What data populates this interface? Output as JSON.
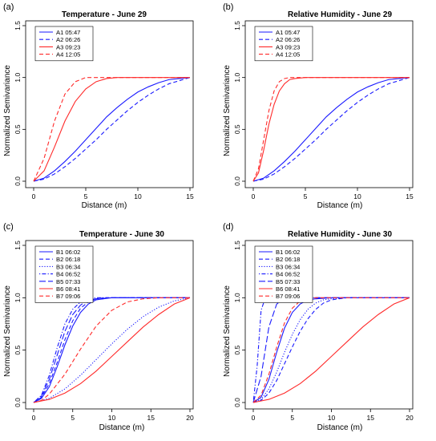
{
  "colors": {
    "blue": "#1a1aff",
    "red": "#ff2a2a"
  },
  "chart_data": [
    {
      "panel_label": "(a)",
      "type": "line",
      "title": "Temperature - June 29",
      "xlabel": "Distance (m)",
      "ylabel": "Normalized Semivariance",
      "xlim": [
        0,
        15
      ],
      "ylim": [
        0,
        1.5
      ],
      "xticks": [
        "0",
        "5",
        "10",
        "15"
      ],
      "yticks": [
        "0.0",
        "0.5",
        "1.0",
        "1.5"
      ],
      "legend_position": "top-left",
      "series": [
        {
          "name": "A1 05:47",
          "color": "blue",
          "style": "solid",
          "x": [
            0,
            1,
            2,
            3,
            4,
            5,
            6,
            7,
            8,
            9,
            10,
            11,
            12,
            13,
            14,
            15
          ],
          "y": [
            0,
            0.03,
            0.1,
            0.19,
            0.29,
            0.4,
            0.51,
            0.62,
            0.71,
            0.79,
            0.86,
            0.91,
            0.95,
            0.98,
            0.99,
            1.0
          ]
        },
        {
          "name": "A2 06:26",
          "color": "blue",
          "style": "dashed",
          "x": [
            0,
            1,
            2,
            3,
            4,
            5,
            6,
            7,
            8,
            9,
            10,
            11,
            12,
            13,
            14,
            15
          ],
          "y": [
            0,
            0.02,
            0.07,
            0.14,
            0.22,
            0.31,
            0.4,
            0.5,
            0.59,
            0.68,
            0.76,
            0.83,
            0.89,
            0.94,
            0.97,
            1.0
          ]
        },
        {
          "name": "A3 09:23",
          "color": "red",
          "style": "solid",
          "x": [
            0,
            1,
            2,
            3,
            4,
            5,
            6,
            7,
            8,
            9,
            10,
            11,
            12,
            13,
            14,
            15
          ],
          "y": [
            0,
            0.1,
            0.33,
            0.58,
            0.77,
            0.89,
            0.96,
            0.99,
            1.0,
            1.0,
            1.0,
            1.0,
            1.0,
            1.0,
            1.0,
            1.0
          ]
        },
        {
          "name": "A4 12:05",
          "color": "red",
          "style": "dashed",
          "x": [
            0,
            1,
            2,
            3,
            4,
            5,
            6,
            7,
            8,
            9,
            10,
            11,
            12,
            13,
            14,
            15
          ],
          "y": [
            0,
            0.22,
            0.58,
            0.84,
            0.96,
            1.0,
            1.0,
            1.0,
            1.0,
            1.0,
            1.0,
            1.0,
            1.0,
            1.0,
            1.0,
            1.0
          ]
        }
      ]
    },
    {
      "panel_label": "(b)",
      "type": "line",
      "title": "Relative Humidity - June 29",
      "xlabel": "Distance (m)",
      "ylabel": "Normalized Semivariance",
      "xlim": [
        0,
        15
      ],
      "ylim": [
        0,
        1.5
      ],
      "xticks": [
        "0",
        "5",
        "10",
        "15"
      ],
      "yticks": [
        "0.0",
        "0.5",
        "1.0",
        "1.5"
      ],
      "legend_position": "top-left",
      "series": [
        {
          "name": "A1 05:47",
          "color": "blue",
          "style": "solid",
          "x": [
            0,
            1,
            2,
            3,
            4,
            5,
            6,
            7,
            8,
            9,
            10,
            11,
            12,
            13,
            14,
            15
          ],
          "y": [
            0,
            0.03,
            0.1,
            0.19,
            0.29,
            0.4,
            0.51,
            0.62,
            0.71,
            0.79,
            0.86,
            0.91,
            0.95,
            0.98,
            0.99,
            1.0
          ]
        },
        {
          "name": "A2 06:26",
          "color": "blue",
          "style": "dashed",
          "x": [
            0,
            1,
            2,
            3,
            4,
            5,
            6,
            7,
            8,
            9,
            10,
            11,
            12,
            13,
            14,
            15
          ],
          "y": [
            0,
            0.02,
            0.07,
            0.14,
            0.22,
            0.31,
            0.4,
            0.5,
            0.59,
            0.68,
            0.76,
            0.83,
            0.89,
            0.94,
            0.97,
            1.0
          ]
        },
        {
          "name": "A3 09:23",
          "color": "red",
          "style": "solid",
          "x": [
            0,
            0.5,
            1,
            1.5,
            2,
            2.5,
            3,
            3.5,
            4,
            5,
            6,
            8,
            10,
            12,
            15
          ],
          "y": [
            0,
            0.08,
            0.3,
            0.55,
            0.74,
            0.87,
            0.94,
            0.98,
            0.99,
            1.0,
            1.0,
            1.0,
            1.0,
            1.0,
            1.0
          ]
        },
        {
          "name": "A4 12:05",
          "color": "red",
          "style": "dashed",
          "x": [
            0,
            0.5,
            1,
            1.5,
            2,
            2.5,
            3,
            3.5,
            4,
            5,
            6,
            8,
            10,
            12,
            15
          ],
          "y": [
            0,
            0.12,
            0.4,
            0.68,
            0.87,
            0.96,
            0.99,
            1.0,
            1.0,
            1.0,
            1.0,
            1.0,
            1.0,
            1.0,
            1.0
          ]
        }
      ]
    },
    {
      "panel_label": "(c)",
      "type": "line",
      "title": "Temperature - June 30",
      "xlabel": "Distance (m)",
      "ylabel": "Normalized Semivariance",
      "xlim": [
        0,
        20
      ],
      "ylim": [
        0,
        1.5
      ],
      "xticks": [
        "0",
        "5",
        "10",
        "15",
        "20"
      ],
      "yticks": [
        "0.0",
        "0.5",
        "1.0",
        "1.5"
      ],
      "legend_position": "top-left",
      "series": [
        {
          "name": "B1 06:02",
          "color": "blue",
          "style": "solid",
          "x": [
            0,
            1,
            2,
            3,
            4,
            5,
            6,
            7,
            8,
            9,
            10,
            12,
            14,
            17,
            20
          ],
          "y": [
            0,
            0.04,
            0.15,
            0.34,
            0.55,
            0.73,
            0.86,
            0.94,
            0.98,
            0.99,
            1.0,
            1.0,
            1.0,
            1.0,
            1.0
          ]
        },
        {
          "name": "B2 06:18",
          "color": "blue",
          "style": "dashed",
          "x": [
            0,
            1,
            2,
            3,
            4,
            5,
            6,
            7,
            8,
            9,
            10,
            12,
            14,
            17,
            20
          ],
          "y": [
            0,
            0.05,
            0.18,
            0.38,
            0.6,
            0.78,
            0.9,
            0.96,
            0.99,
            1.0,
            1.0,
            1.0,
            1.0,
            1.0,
            1.0
          ]
        },
        {
          "name": "B3 06:34",
          "color": "blue",
          "style": "dotted",
          "x": [
            0,
            2,
            4,
            6,
            8,
            10,
            12,
            14,
            16,
            18,
            20
          ],
          "y": [
            0,
            0.04,
            0.13,
            0.26,
            0.41,
            0.56,
            0.7,
            0.82,
            0.91,
            0.97,
            1.0
          ]
        },
        {
          "name": "B4 06:52",
          "color": "blue",
          "style": "dotdash",
          "x": [
            0,
            1,
            2,
            3,
            4,
            5,
            6,
            7,
            8,
            10,
            12,
            15,
            20
          ],
          "y": [
            0,
            0.07,
            0.26,
            0.52,
            0.75,
            0.89,
            0.96,
            0.99,
            1.0,
            1.0,
            1.0,
            1.0,
            1.0
          ]
        },
        {
          "name": "B5 07:33",
          "color": "blue",
          "style": "longdash",
          "x": [
            0,
            1,
            2,
            3,
            4,
            5,
            6,
            7,
            8,
            10,
            12,
            15,
            20
          ],
          "y": [
            0,
            0.06,
            0.22,
            0.45,
            0.68,
            0.84,
            0.93,
            0.98,
            0.99,
            1.0,
            1.0,
            1.0,
            1.0
          ]
        },
        {
          "name": "B6 08:41",
          "color": "red",
          "style": "solid",
          "x": [
            0,
            2,
            4,
            6,
            8,
            10,
            12,
            14,
            16,
            18,
            20
          ],
          "y": [
            0,
            0.03,
            0.09,
            0.18,
            0.3,
            0.44,
            0.58,
            0.72,
            0.84,
            0.94,
            1.0
          ]
        },
        {
          "name": "B7 09:06",
          "color": "red",
          "style": "dashed",
          "x": [
            0,
            1,
            2,
            4,
            6,
            8,
            10,
            12,
            14,
            16,
            18,
            20
          ],
          "y": [
            0,
            0.02,
            0.08,
            0.27,
            0.51,
            0.73,
            0.88,
            0.96,
            0.99,
            1.0,
            1.0,
            1.0
          ]
        }
      ]
    },
    {
      "panel_label": "(d)",
      "type": "line",
      "title": "Relative Humidity - June 30",
      "xlabel": "Distance (m)",
      "ylabel": "Normalized Semivariance",
      "xlim": [
        0,
        20
      ],
      "ylim": [
        0,
        1.5
      ],
      "xticks": [
        "0",
        "5",
        "10",
        "15",
        "20"
      ],
      "yticks": [
        "0.0",
        "0.5",
        "1.0",
        "1.5"
      ],
      "legend_position": "top-left",
      "series": [
        {
          "name": "B1 06:02",
          "color": "blue",
          "style": "solid",
          "x": [
            0,
            1,
            2,
            3,
            4,
            5,
            6,
            7,
            8,
            10,
            12,
            15,
            20
          ],
          "y": [
            0,
            0.05,
            0.22,
            0.48,
            0.71,
            0.86,
            0.94,
            0.98,
            0.99,
            1.0,
            1.0,
            1.0,
            1.0
          ]
        },
        {
          "name": "B2 06:18",
          "color": "blue",
          "style": "dashed",
          "x": [
            0,
            1,
            2,
            3,
            4,
            5,
            6,
            7,
            8,
            9,
            10,
            12,
            14,
            17,
            20
          ],
          "y": [
            0,
            0.02,
            0.09,
            0.21,
            0.37,
            0.53,
            0.68,
            0.8,
            0.89,
            0.95,
            0.98,
            1.0,
            1.0,
            1.0,
            1.0
          ]
        },
        {
          "name": "B3 06:34",
          "color": "blue",
          "style": "dotted",
          "x": [
            0,
            1,
            2,
            3,
            4,
            5,
            6,
            7,
            8,
            9,
            10,
            12,
            14,
            17,
            20
          ],
          "y": [
            0,
            0.03,
            0.13,
            0.29,
            0.48,
            0.65,
            0.79,
            0.89,
            0.95,
            0.98,
            0.99,
            1.0,
            1.0,
            1.0,
            1.0
          ]
        },
        {
          "name": "B4 06:52",
          "color": "blue",
          "style": "dotdash",
          "x": [
            0,
            0.5,
            1,
            1.5,
            2,
            3,
            4,
            6,
            10,
            15,
            20
          ],
          "y": [
            0,
            0.35,
            0.88,
            0.99,
            1.0,
            1.0,
            1.0,
            1.0,
            1.0,
            1.0,
            1.0
          ]
        },
        {
          "name": "B5 07:33",
          "color": "blue",
          "style": "longdash",
          "x": [
            0,
            1,
            2,
            3,
            4,
            5,
            6,
            8,
            10,
            15,
            20
          ],
          "y": [
            0,
            0.25,
            0.72,
            0.94,
            0.99,
            1.0,
            1.0,
            1.0,
            1.0,
            1.0,
            1.0
          ]
        },
        {
          "name": "B6 08:41",
          "color": "red",
          "style": "solid",
          "x": [
            0,
            2,
            4,
            6,
            8,
            10,
            12,
            14,
            16,
            18,
            20
          ],
          "y": [
            0,
            0.03,
            0.09,
            0.18,
            0.3,
            0.44,
            0.58,
            0.72,
            0.84,
            0.94,
            1.0
          ]
        },
        {
          "name": "B7 09:06",
          "color": "red",
          "style": "dashed",
          "x": [
            0,
            1,
            2,
            3,
            4,
            5,
            6,
            7,
            8,
            10,
            12,
            15,
            20
          ],
          "y": [
            0,
            0.07,
            0.27,
            0.53,
            0.76,
            0.9,
            0.97,
            0.99,
            1.0,
            1.0,
            1.0,
            1.0,
            1.0
          ]
        }
      ]
    }
  ]
}
